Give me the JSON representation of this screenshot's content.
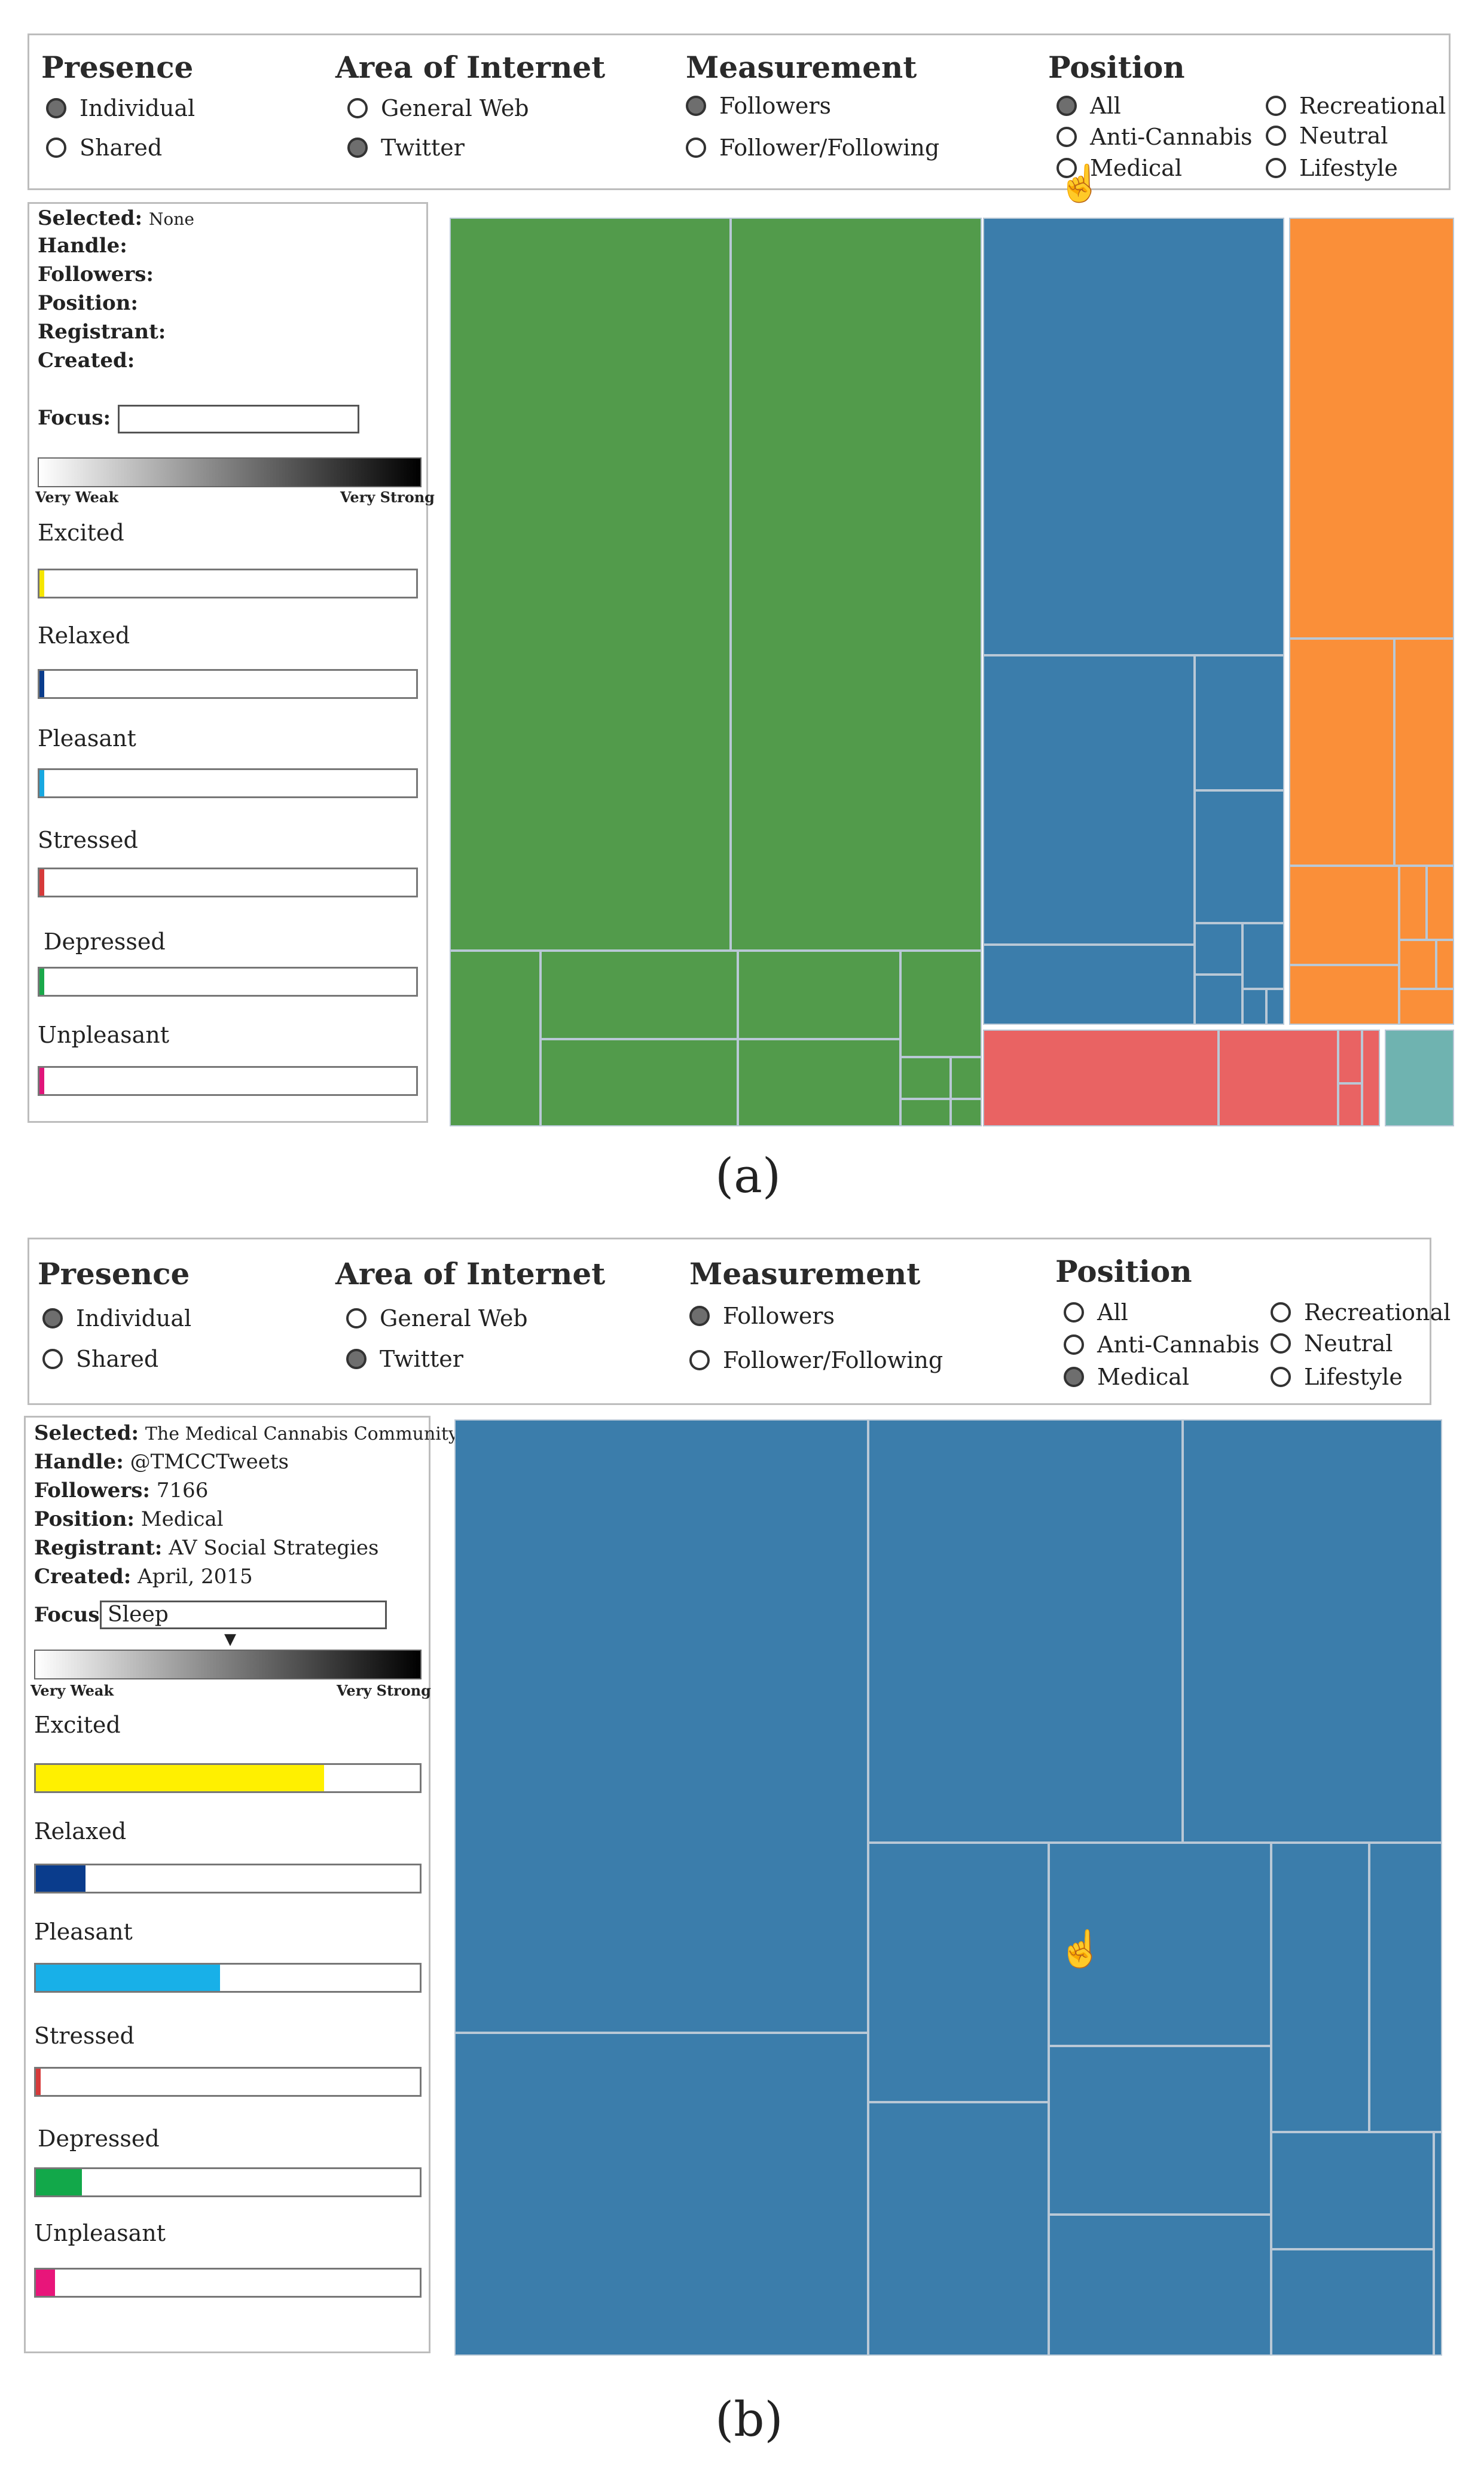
{
  "panels": [
    {
      "caption": "(a)",
      "filters": {
        "presence": {
          "title": "Presence",
          "options": [
            {
              "label": "Individual",
              "selected": true
            },
            {
              "label": "Shared",
              "selected": false
            }
          ]
        },
        "area": {
          "title": "Area of Internet",
          "options": [
            {
              "label": "General Web",
              "selected": false
            },
            {
              "label": "Twitter",
              "selected": true
            }
          ]
        },
        "measurement": {
          "title": "Measurement",
          "options": [
            {
              "label": "Followers",
              "selected": true
            },
            {
              "label": "Follower/Following",
              "selected": false
            }
          ]
        },
        "position": {
          "title": "Position",
          "options": [
            {
              "label": "All",
              "selected": true
            },
            {
              "label": "Anti-Cannabis",
              "selected": false
            },
            {
              "label": "Medical",
              "selected": false
            },
            {
              "label": "Recreational",
              "selected": false
            },
            {
              "label": "Neutral",
              "selected": false
            },
            {
              "label": "Lifestyle",
              "selected": false
            }
          ]
        }
      },
      "info": {
        "selected_key": "Selected:",
        "selected_val": "None",
        "handle_key": "Handle:",
        "handle_val": "",
        "followers_key": "Followers:",
        "followers_val": "",
        "position_key": "Position:",
        "position_val": "",
        "registrant_key": "Registrant:",
        "registrant_val": "",
        "created_key": "Created:",
        "created_val": "",
        "focus_key": "Focus:",
        "focus_val": ""
      },
      "scale": {
        "weak": "Very Weak",
        "strong": "Very Strong",
        "marker": null
      },
      "emotions": [
        {
          "label": "Excited",
          "color": "#f5e600",
          "fraction": 0.01
        },
        {
          "label": "Relaxed",
          "color": "#0a3c8c",
          "fraction": 0.01
        },
        {
          "label": "Pleasant",
          "color": "#18a8e0",
          "fraction": 0.01
        },
        {
          "label": "Stressed",
          "color": "#d63a3a",
          "fraction": 0.01
        },
        {
          "label": "Depressed",
          "color": "#1aa84a",
          "fraction": 0.01
        },
        {
          "label": "Unpleasant",
          "color": "#e0157a",
          "fraction": 0.01
        }
      ]
    },
    {
      "caption": "(b)",
      "filters": {
        "presence": {
          "title": "Presence",
          "options": [
            {
              "label": "Individual",
              "selected": true
            },
            {
              "label": "Shared",
              "selected": false
            }
          ]
        },
        "area": {
          "title": "Area of Internet",
          "options": [
            {
              "label": "General Web",
              "selected": false
            },
            {
              "label": "Twitter",
              "selected": true
            }
          ]
        },
        "measurement": {
          "title": "Measurement",
          "options": [
            {
              "label": "Followers",
              "selected": true
            },
            {
              "label": "Follower/Following",
              "selected": false
            }
          ]
        },
        "position": {
          "title": "Position",
          "options": [
            {
              "label": "All",
              "selected": false
            },
            {
              "label": "Anti-Cannabis",
              "selected": false
            },
            {
              "label": "Medical",
              "selected": true
            },
            {
              "label": "Recreational",
              "selected": false
            },
            {
              "label": "Neutral",
              "selected": false
            },
            {
              "label": "Lifestyle",
              "selected": false
            }
          ]
        }
      },
      "info": {
        "selected_key": "Selected:",
        "selected_val": "The Medical Cannabis Community",
        "handle_key": "Handle:",
        "handle_val": "@TMCCTweets",
        "followers_key": "Followers:",
        "followers_val": "7166",
        "position_key": "Position:",
        "position_val": "Medical",
        "registrant_key": "Registrant:",
        "registrant_val": "AV Social Strategies",
        "created_key": "Created:",
        "created_val": "April, 2015",
        "focus_key": "Focus:",
        "focus_val": "Sleep"
      },
      "scale": {
        "weak": "Very Weak",
        "strong": "Very Strong",
        "marker": "▼"
      },
      "emotions": [
        {
          "label": "Excited",
          "color": "#fff000",
          "fraction": 0.75
        },
        {
          "label": "Relaxed",
          "color": "#0a3c8c",
          "fraction": 0.13
        },
        {
          "label": "Pleasant",
          "color": "#18b0e8",
          "fraction": 0.48
        },
        {
          "label": "Stressed",
          "color": "#d63a3a",
          "fraction": 0.01
        },
        {
          "label": "Depressed",
          "color": "#12a84a",
          "fraction": 0.12
        },
        {
          "label": "Unpleasant",
          "color": "#e8157a",
          "fraction": 0.05
        }
      ]
    }
  ],
  "colors": {
    "medical": "#3b7dab",
    "recreational": "#fa8f39",
    "lifestyle": "#529b4b",
    "anti_cannabis": "#e96363",
    "neutral": "#6fb3b0",
    "cell_border": "#b9c8d6"
  }
}
